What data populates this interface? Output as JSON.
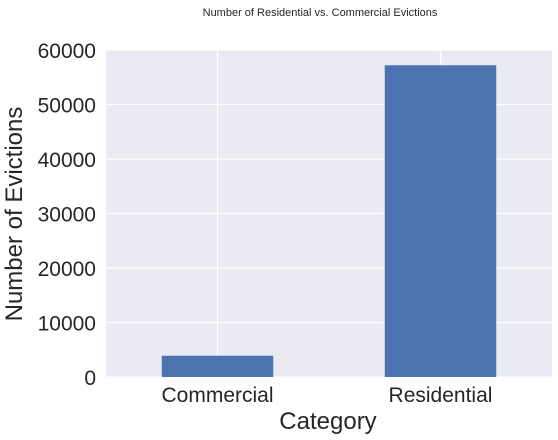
{
  "chart_data": {
    "type": "bar",
    "title": "Number of Residential vs. Commercial Evictions",
    "xlabel": "Category",
    "ylabel": "Number of Evictions",
    "categories": [
      "Commercial",
      "Residential"
    ],
    "values": [
      3900,
      57200
    ],
    "ylim": [
      0,
      60000
    ],
    "yticks": [
      "0",
      "10000",
      "20000",
      "30000",
      "40000",
      "50000",
      "60000"
    ],
    "grid": true,
    "legend": "none",
    "colors": {
      "bar": "#4c72b0",
      "background": "#eaeaf2",
      "grid": "#ffffff",
      "text": "#262626"
    }
  }
}
